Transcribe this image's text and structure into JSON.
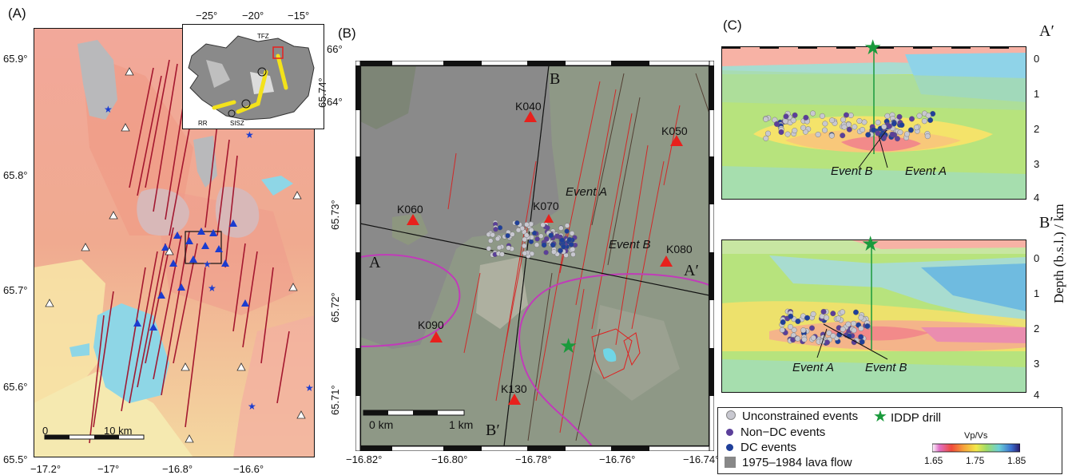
{
  "panels": {
    "a": {
      "label": "(A)",
      "lat_ticks": [
        "65.9°",
        "65.8°",
        "65.7°",
        "65.6°",
        "65.5°"
      ],
      "lon_ticks_bottom": [
        "−17.2°",
        "−17°",
        "−16.8°",
        "−16.6°"
      ],
      "scalebar": {
        "start": "0",
        "end": "10 km"
      },
      "inset": {
        "lon_ticks": [
          "−25°",
          "−20°",
          "−15°"
        ],
        "lat_ticks": [
          "66°",
          "64°"
        ],
        "labels": [
          "TFZ",
          "SISZ",
          "RR"
        ]
      }
    },
    "b": {
      "label": "(B)",
      "lat_ticks": [
        "65.74°",
        "65.73°",
        "65.72°",
        "65.71°"
      ],
      "lon_ticks": [
        "−16.82°",
        "−16.80°",
        "−16.78°",
        "−16.76°",
        "−16.74°"
      ],
      "stations": [
        "K040",
        "K050",
        "K060",
        "K070",
        "K080",
        "K090",
        "K130"
      ],
      "profile_labels": {
        "a": "A",
        "a_prime": "A′",
        "b": "B",
        "b_prime": "B′"
      },
      "events": {
        "a": "Event A",
        "b": "Event B"
      },
      "scalebar": {
        "start": "0 km",
        "end": "1 km"
      }
    },
    "c": {
      "label": "(C)",
      "top_end": "A′",
      "bottom_end": "B′",
      "depth_ticks": [
        "0",
        "1",
        "2",
        "3",
        "4"
      ],
      "ylabel": "Depth (b.s.l.) / km",
      "top_events": {
        "b": "Event B",
        "a": "Event A"
      },
      "bottom_events": {
        "a": "Event A",
        "b": "Event B"
      }
    }
  },
  "legend": {
    "unconstrained": "Unconstrained events",
    "nondc": "Non−DC events",
    "dc": "DC events",
    "lava": "1975–1984 lava flow",
    "drill": "IDDP drill",
    "colorbar_title": "Vp/Vs",
    "colorbar_ticks": [
      "1.65",
      "1.75",
      "1.85"
    ]
  },
  "colors": {
    "unconstrained": "#c8c8d0",
    "nondc": "#5b3f9a",
    "dc": "#1f3f9a",
    "station": "#e8201c",
    "drill": "#1a9a3c",
    "fissure": "#a0102a"
  }
}
